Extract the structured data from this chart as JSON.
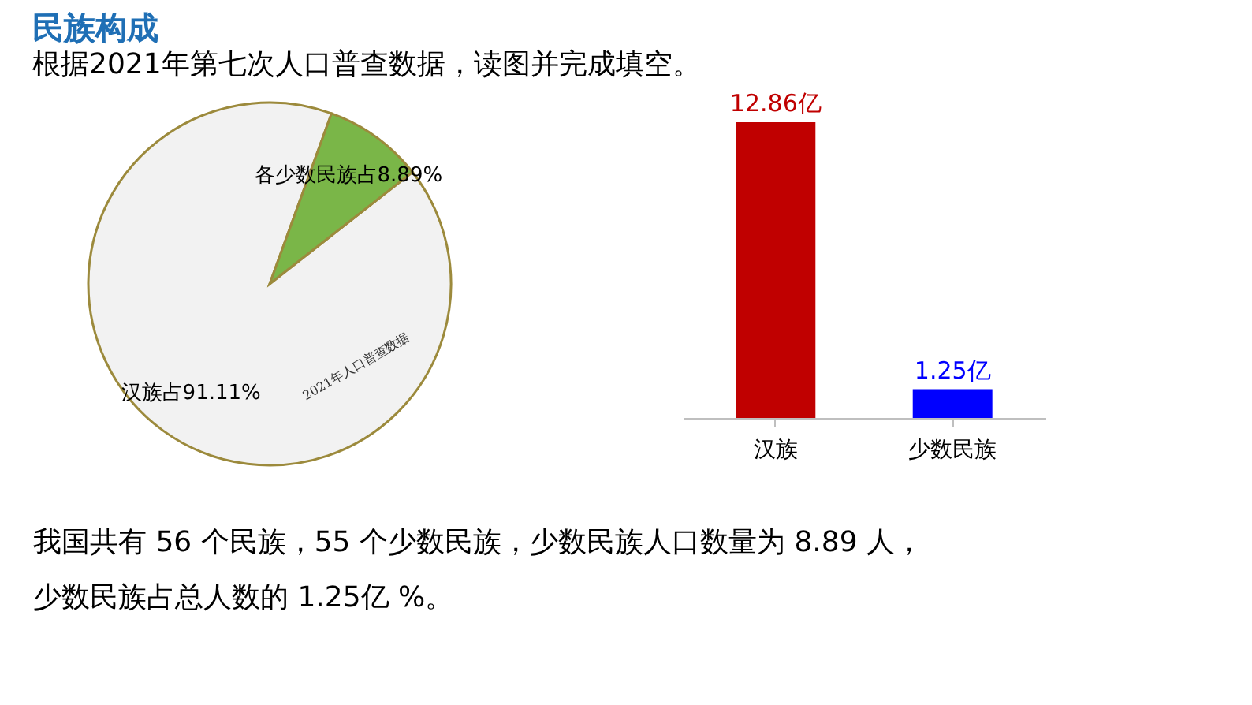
{
  "chart_data": [
    {
      "type": "pie",
      "title": "民族构成",
      "subtitle": "根据2021年第七次人口普查数据，读图并完成填空。",
      "categories": [
        "汉族占91.11%",
        "各少数民族占8.89%"
      ],
      "values": [
        91.11,
        8.89
      ],
      "colors": [
        "#f2f2f2",
        "#7ab648"
      ],
      "annotations": [
        "2021年人口普查数据"
      ],
      "legend": false
    },
    {
      "type": "bar",
      "categories": [
        "汉族",
        "少数民族"
      ],
      "values": [
        12.86,
        1.25
      ],
      "colors": [
        "#c00000",
        "#0000ff"
      ],
      "value_labels": [
        "12.86亿",
        "1.25亿"
      ]
    },
    {
      "type": "other",
      "annotations": [
        "我国共有 56 个民族，55 个少数民族，少数民族人口数量为 8.89 人，",
        "少数民族占总人数的 1.25亿 %。"
      ]
    }
  ]
}
